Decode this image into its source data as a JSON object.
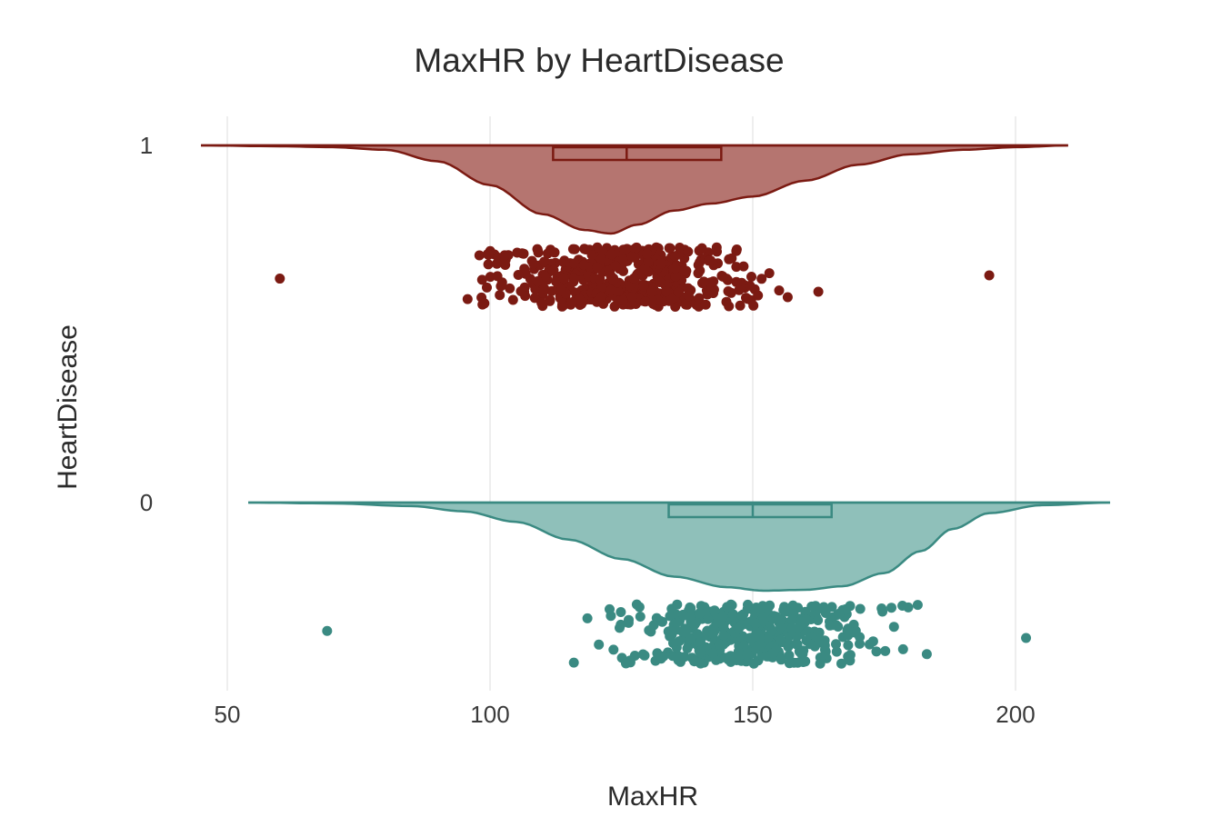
{
  "chart_data": {
    "type": "raincloud",
    "title": "MaxHR by HeartDisease",
    "xlabel": "MaxHR",
    "ylabel": "HeartDisease",
    "xlim": [
      45,
      218
    ],
    "xticks": [
      50,
      100,
      150,
      200
    ],
    "grid": true,
    "groups": [
      {
        "label": "1",
        "color": "#7b1a12",
        "fill": "#b57570",
        "density_range": [
          45,
          210
        ],
        "density_shape": [
          [
            45,
            0
          ],
          [
            60,
            0.01
          ],
          [
            70,
            0.02
          ],
          [
            80,
            0.05
          ],
          [
            90,
            0.18
          ],
          [
            100,
            0.45
          ],
          [
            110,
            0.78
          ],
          [
            118,
            0.96
          ],
          [
            123,
            1.0
          ],
          [
            128,
            0.9
          ],
          [
            135,
            0.74
          ],
          [
            142,
            0.66
          ],
          [
            150,
            0.58
          ],
          [
            160,
            0.4
          ],
          [
            170,
            0.22
          ],
          [
            180,
            0.1
          ],
          [
            190,
            0.05
          ],
          [
            200,
            0.02
          ],
          [
            210,
            0
          ]
        ],
        "box": {
          "q1": 112,
          "median": 126,
          "q3": 144
        },
        "points_range": [
          60,
          195
        ],
        "points": 508,
        "points_center": 125
      },
      {
        "label": "0",
        "color": "#3a8a82",
        "fill": "#8fc0ba",
        "density_range": [
          54,
          218
        ],
        "density_shape": [
          [
            54,
            0
          ],
          [
            70,
            0.01
          ],
          [
            85,
            0.04
          ],
          [
            95,
            0.1
          ],
          [
            105,
            0.22
          ],
          [
            115,
            0.42
          ],
          [
            125,
            0.64
          ],
          [
            135,
            0.84
          ],
          [
            145,
            0.96
          ],
          [
            152,
            1.0
          ],
          [
            160,
            0.99
          ],
          [
            167,
            0.95
          ],
          [
            175,
            0.8
          ],
          [
            182,
            0.55
          ],
          [
            188,
            0.3
          ],
          [
            195,
            0.12
          ],
          [
            205,
            0.03
          ],
          [
            218,
            0
          ]
        ],
        "box": {
          "q1": 134,
          "median": 150,
          "q3": 165
        },
        "points_range": [
          69,
          202
        ],
        "points": 410,
        "points_center": 150
      }
    ]
  }
}
